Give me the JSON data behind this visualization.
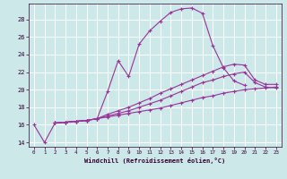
{
  "xlabel": "Windchill (Refroidissement éolien,°C)",
  "background_color": "#cce8e8",
  "grid_color": "#ffffff",
  "line_color": "#993399",
  "xlim": [
    -0.5,
    23.5
  ],
  "ylim": [
    13.5,
    29.8
  ],
  "yticks": [
    14,
    16,
    18,
    20,
    22,
    24,
    26,
    28
  ],
  "xticks": [
    0,
    1,
    2,
    3,
    4,
    5,
    6,
    7,
    8,
    9,
    10,
    11,
    12,
    13,
    14,
    15,
    16,
    17,
    18,
    19,
    20,
    21,
    22,
    23
  ],
  "line1_x": [
    0,
    1,
    2,
    3,
    4,
    5,
    6,
    7,
    8,
    9,
    10,
    11,
    12,
    13,
    14,
    15,
    16,
    17,
    18,
    19,
    20
  ],
  "line1_y": [
    16.0,
    14.0,
    16.2,
    16.3,
    16.4,
    16.5,
    16.7,
    19.8,
    23.3,
    21.5,
    25.2,
    26.7,
    27.8,
    28.8,
    29.2,
    29.3,
    28.7,
    25.0,
    22.5,
    21.0,
    20.5
  ],
  "line2_x": [
    2,
    3,
    4,
    5,
    6,
    7,
    8,
    9,
    10,
    11,
    12,
    13,
    14,
    15,
    16,
    17,
    18,
    19,
    20,
    21,
    22,
    23
  ],
  "line2_y": [
    16.2,
    16.3,
    16.4,
    16.5,
    16.7,
    17.2,
    17.6,
    18.0,
    18.5,
    19.0,
    19.6,
    20.1,
    20.6,
    21.1,
    21.6,
    22.1,
    22.6,
    22.9,
    22.8,
    21.1,
    20.6,
    20.6
  ],
  "line3_x": [
    2,
    3,
    4,
    5,
    6,
    7,
    8,
    9,
    10,
    11,
    12,
    13,
    14,
    15,
    16,
    17,
    18,
    19,
    20,
    21,
    22,
    23
  ],
  "line3_y": [
    16.2,
    16.3,
    16.4,
    16.5,
    16.7,
    17.0,
    17.3,
    17.6,
    18.0,
    18.4,
    18.8,
    19.3,
    19.8,
    20.3,
    20.8,
    21.1,
    21.5,
    21.8,
    22.0,
    20.8,
    20.3,
    20.2
  ],
  "line4_x": [
    2,
    3,
    4,
    5,
    6,
    7,
    8,
    9,
    10,
    11,
    12,
    13,
    14,
    15,
    16,
    17,
    18,
    19,
    20,
    21,
    22,
    23
  ],
  "line4_y": [
    16.2,
    16.3,
    16.4,
    16.5,
    16.7,
    16.9,
    17.1,
    17.3,
    17.5,
    17.7,
    17.9,
    18.2,
    18.5,
    18.8,
    19.1,
    19.3,
    19.6,
    19.8,
    20.0,
    20.1,
    20.2,
    20.3
  ]
}
